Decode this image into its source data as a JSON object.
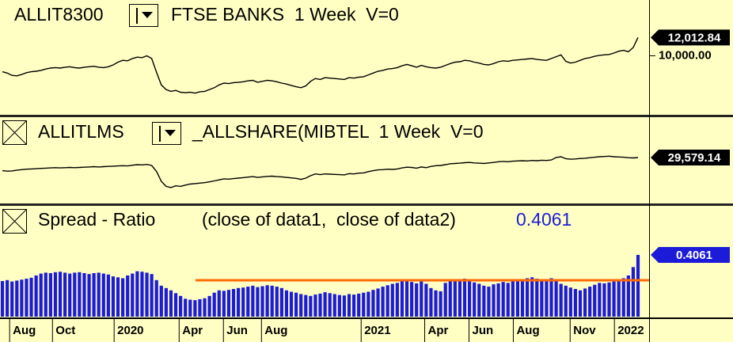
{
  "chart_data": [
    {
      "type": "line",
      "symbol": "ALLIT8300",
      "title": "FTSE BANKS  1 Week  V=0",
      "color": "#000000",
      "ylim": [
        3437,
        16125
      ],
      "yticks": [
        {
          "value": 10000,
          "label": "10,000.00"
        }
      ],
      "last_value_label": "12,012.84",
      "values": [
        8250,
        8100,
        7850,
        7800,
        7950,
        8150,
        8250,
        8300,
        8400,
        8550,
        8650,
        8700,
        8650,
        8750,
        8800,
        8700,
        8650,
        8750,
        8800,
        8850,
        8750,
        8700,
        8800,
        9000,
        9300,
        9500,
        9450,
        9700,
        9850,
        9800,
        10000,
        9700,
        8200,
        6800,
        6300,
        6100,
        6200,
        6000,
        5950,
        6000,
        5900,
        6050,
        6100,
        6300,
        6500,
        6800,
        7000,
        6950,
        7050,
        7100,
        7150,
        7250,
        7300,
        7100,
        7200,
        7300,
        7250,
        7150,
        7000,
        6900,
        6750,
        6600,
        6500,
        6700,
        7200,
        7500,
        7400,
        7600,
        7550,
        7500,
        7450,
        7400,
        7600,
        7550,
        7650,
        7700,
        7900,
        8100,
        8300,
        8400,
        8550,
        8600,
        8700,
        8900,
        9050,
        8900,
        8750,
        8950,
        8800,
        8700,
        8650,
        8750,
        8950,
        9150,
        9300,
        9350,
        9500,
        9450,
        9300,
        9200,
        9050,
        9000,
        9150,
        9350,
        9450,
        9400,
        9500,
        9550,
        9600,
        9650,
        9700,
        9600,
        9550,
        9500,
        9700,
        9900,
        10100,
        9400,
        9200,
        9300,
        9500,
        9700,
        9800,
        9950,
        10050,
        10100,
        10150,
        10300,
        10500,
        10600,
        10450,
        10900,
        12012.84
      ]
    },
    {
      "type": "line",
      "symbol": "ALLITLMS",
      "title": "_ALLSHARE(MIBTEL  1 Week  V=0",
      "color": "#000000",
      "ylim": [
        10800,
        45800
      ],
      "last_value_label": "29,579.14",
      "values": [
        24300,
        24100,
        24200,
        24500,
        24700,
        24900,
        25000,
        25100,
        25200,
        25300,
        25400,
        25500,
        25400,
        25500,
        25600,
        25500,
        25600,
        25700,
        25800,
        25900,
        25800,
        25900,
        26000,
        26100,
        26200,
        26300,
        26200,
        26500,
        26700,
        26600,
        26800,
        26400,
        24000,
        20000,
        18000,
        17500,
        18200,
        18000,
        18500,
        18900,
        19100,
        19300,
        19500,
        19800,
        20200,
        20600,
        21000,
        20900,
        21100,
        21300,
        21500,
        21700,
        21900,
        21600,
        21800,
        22000,
        22100,
        21900,
        21800,
        21600,
        21400,
        21200,
        20800,
        21300,
        22300,
        23000,
        22700,
        23000,
        22900,
        22800,
        22700,
        22600,
        23100,
        23000,
        23300,
        23400,
        23900,
        24300,
        24600,
        24700,
        24900,
        24800,
        25000,
        25400,
        25700,
        25600,
        25300,
        25800,
        25500,
        26000,
        26300,
        26400,
        26700,
        27100,
        27200,
        27300,
        27500,
        27600,
        27400,
        27300,
        27200,
        27400,
        27600,
        27900,
        28000,
        27900,
        28100,
        28200,
        28300,
        28200,
        28400,
        28300,
        28500,
        28400,
        28600,
        29600,
        29900,
        29100,
        28900,
        29000,
        29200,
        29300,
        29500,
        29700,
        29900,
        30000,
        30100,
        29900,
        29800,
        29700,
        29500,
        29400,
        29579.14
      ]
    },
    {
      "type": "bar",
      "title": "Spread - Ratio",
      "subtitle": "(close of data1,  close of data2)",
      "last_value_label": "0.4061",
      "color": "#1c1cd8",
      "ylim": [
        0.2735,
        0.5115
      ],
      "xlim": [
        -0.5,
        134.3
      ],
      "xticks": [
        {
          "value": 1.5,
          "label": "Aug"
        },
        {
          "value": 10.4,
          "label": "Oct"
        },
        {
          "value": 23.2,
          "label": "2020"
        },
        {
          "value": 36.7,
          "label": "Apr"
        },
        {
          "value": 45.9,
          "label": "Jun"
        },
        {
          "value": 53.8,
          "label": "Aug"
        },
        {
          "value": 74.5,
          "label": "2021"
        },
        {
          "value": 87.7,
          "label": "Apr"
        },
        {
          "value": 96.9,
          "label": "Jun"
        },
        {
          "value": 106.1,
          "label": "Aug"
        },
        {
          "value": 117.9,
          "label": "Nov"
        },
        {
          "value": 127.1,
          "label": "2022"
        }
      ],
      "reference_line": {
        "value": 0.3517,
        "x_start": 40.1,
        "color": "#ff6a00"
      },
      "values": [
        0.35,
        0.352,
        0.349,
        0.351,
        0.353,
        0.355,
        0.357,
        0.362,
        0.366,
        0.368,
        0.367,
        0.369,
        0.37,
        0.368,
        0.366,
        0.368,
        0.369,
        0.367,
        0.365,
        0.367,
        0.368,
        0.366,
        0.364,
        0.36,
        0.358,
        0.356,
        0.362,
        0.366,
        0.371,
        0.37,
        0.368,
        0.365,
        0.352,
        0.34,
        0.335,
        0.33,
        0.324,
        0.318,
        0.312,
        0.31,
        0.309,
        0.311,
        0.313,
        0.318,
        0.325,
        0.33,
        0.329,
        0.331,
        0.333,
        0.335,
        0.336,
        0.338,
        0.34,
        0.337,
        0.339,
        0.341,
        0.34,
        0.338,
        0.335,
        0.33,
        0.327,
        0.325,
        0.322,
        0.32,
        0.318,
        0.321,
        0.323,
        0.326,
        0.324,
        0.322,
        0.32,
        0.319,
        0.322,
        0.321,
        0.323,
        0.325,
        0.327,
        0.331,
        0.334,
        0.338,
        0.341,
        0.344,
        0.346,
        0.35,
        0.352,
        0.348,
        0.345,
        0.349,
        0.344,
        0.335,
        0.33,
        0.328,
        0.346,
        0.35,
        0.353,
        0.352,
        0.355,
        0.35,
        0.347,
        0.344,
        0.34,
        0.338,
        0.343,
        0.345,
        0.348,
        0.346,
        0.35,
        0.352,
        0.354,
        0.356,
        0.358,
        0.355,
        0.353,
        0.351,
        0.356,
        0.35,
        0.344,
        0.34,
        0.336,
        0.333,
        0.33,
        0.334,
        0.338,
        0.342,
        0.346,
        0.345,
        0.347,
        0.349,
        0.352,
        0.356,
        0.362,
        0.38,
        0.4061
      ]
    }
  ]
}
